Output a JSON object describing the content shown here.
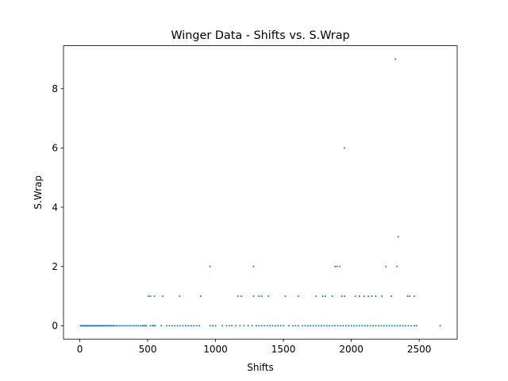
{
  "chart_data": {
    "type": "scatter",
    "title": "Winger Data - Shifts vs. S.Wrap",
    "xlabel": "Shifts",
    "ylabel": "S.Wrap",
    "xlim": [
      -120,
      2780
    ],
    "ylim": [
      -0.45,
      9.45
    ],
    "xticks": [
      0,
      500,
      1000,
      1500,
      2000,
      2500
    ],
    "yticks": [
      0,
      2,
      4,
      6,
      8
    ],
    "xtick_labels": [
      "0",
      "500",
      "1000",
      "1500",
      "2000",
      "2500"
    ],
    "ytick_labels": [
      "0",
      "2",
      "4",
      "6",
      "8"
    ],
    "grid": false,
    "legend": "none",
    "point_color": "#1f77b4",
    "series": [
      {
        "x": [
          5,
          12,
          18,
          25,
          30,
          35,
          40,
          45,
          52,
          60,
          66,
          72,
          80,
          88,
          95,
          102,
          110,
          118,
          125,
          132,
          140,
          148,
          155,
          162,
          170,
          178,
          186,
          195,
          205,
          215,
          225,
          235,
          245,
          255,
          268,
          280,
          295,
          310,
          325,
          340,
          355,
          370,
          385,
          400,
          415,
          430,
          445,
          460,
          470,
          480,
          490,
          520,
          535,
          545,
          555,
          600,
          640,
          660,
          680,
          700,
          720,
          740,
          760,
          780,
          800,
          820,
          840,
          860,
          880,
          960,
          980,
          1000,
          1050,
          1080,
          1100,
          1120,
          1150,
          1180,
          1210,
          1240,
          1270,
          1300,
          1320,
          1340,
          1360,
          1380,
          1400,
          1420,
          1440,
          1460,
          1480,
          1500,
          1540,
          1570,
          1590,
          1610,
          1640,
          1660,
          1680,
          1700,
          1720,
          1740,
          1760,
          1780,
          1800,
          1820,
          1840,
          1860,
          1880,
          1900,
          1920,
          1940,
          1960,
          1980,
          2000,
          2020,
          2040,
          2060,
          2080,
          2100,
          2120,
          2140,
          2160,
          2180,
          2200,
          2220,
          2240,
          2260,
          2280,
          2300,
          2320,
          2340,
          2360,
          2380,
          2400,
          2420,
          2440,
          2465,
          2480,
          2655,
          505,
          520,
          550,
          610,
          735,
          890,
          1165,
          1190,
          1280,
          1320,
          1340,
          1390,
          1515,
          1610,
          1740,
          1790,
          1810,
          1860,
          1930,
          1950,
          2030,
          2060,
          2095,
          2125,
          2150,
          2180,
          2225,
          2295,
          2415,
          2430,
          2465,
          960,
          1280,
          1880,
          1895,
          1915,
          2255,
          2335,
          1950,
          2345,
          2325
        ],
        "y": [
          0,
          0,
          0,
          0,
          0,
          0,
          0,
          0,
          0,
          0,
          0,
          0,
          0,
          0,
          0,
          0,
          0,
          0,
          0,
          0,
          0,
          0,
          0,
          0,
          0,
          0,
          0,
          0,
          0,
          0,
          0,
          0,
          0,
          0,
          0,
          0,
          0,
          0,
          0,
          0,
          0,
          0,
          0,
          0,
          0,
          0,
          0,
          0,
          0,
          0,
          0,
          0,
          0,
          0,
          0,
          0,
          0,
          0,
          0,
          0,
          0,
          0,
          0,
          0,
          0,
          0,
          0,
          0,
          0,
          0,
          0,
          0,
          0,
          0,
          0,
          0,
          0,
          0,
          0,
          0,
          0,
          0,
          0,
          0,
          0,
          0,
          0,
          0,
          0,
          0,
          0,
          0,
          0,
          0,
          0,
          0,
          0,
          0,
          0,
          0,
          0,
          0,
          0,
          0,
          0,
          0,
          0,
          0,
          0,
          0,
          0,
          0,
          0,
          0,
          0,
          0,
          0,
          0,
          0,
          0,
          0,
          0,
          0,
          0,
          0,
          0,
          0,
          0,
          0,
          0,
          0,
          0,
          0,
          0,
          0,
          0,
          0,
          0,
          0,
          0,
          1,
          1,
          1,
          1,
          1,
          1,
          1,
          1,
          1,
          1,
          1,
          1,
          1,
          1,
          1,
          1,
          1,
          1,
          1,
          1,
          1,
          1,
          1,
          1,
          1,
          1,
          1,
          1,
          1,
          1,
          1,
          2,
          2,
          2,
          2,
          2,
          2,
          2,
          6,
          3,
          9
        ]
      }
    ]
  }
}
